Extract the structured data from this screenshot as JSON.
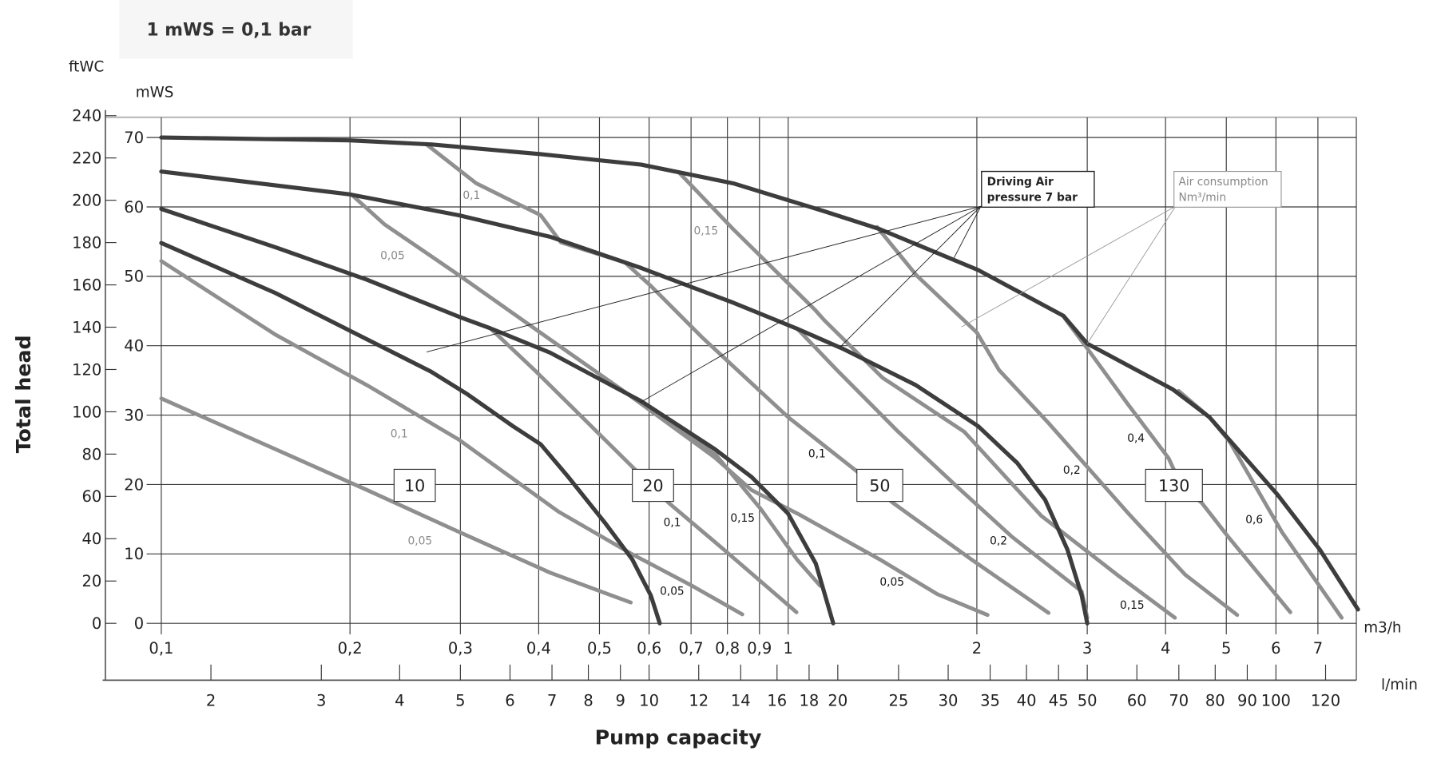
{
  "header": {
    "note": "1 mWS = 0,1 bar"
  },
  "chart_data": {
    "type": "line",
    "title": "",
    "xlabel": "Pump capacity",
    "ylabel": "Total head",
    "x_scale": "log",
    "x_unit": "m3/h",
    "x2_unit": "l/min",
    "y_unit": "mWS",
    "y2_unit": "ftWC",
    "xlim": [
      0.1,
      8.1
    ],
    "ylim": [
      0,
      72.9
    ],
    "grid": true,
    "x_ticks": [
      {
        "value": 0.1,
        "label": "0,1"
      },
      {
        "value": 0.2,
        "label": "0,2"
      },
      {
        "value": 0.3,
        "label": "0,3"
      },
      {
        "value": 0.4,
        "label": "0,4"
      },
      {
        "value": 0.5,
        "label": "0,5"
      },
      {
        "value": 0.6,
        "label": "0,6"
      },
      {
        "value": 0.7,
        "label": "0,7"
      },
      {
        "value": 0.8,
        "label": "0,8"
      },
      {
        "value": 0.9,
        "label": "0,9"
      },
      {
        "value": 1,
        "label": "1"
      },
      {
        "value": 2,
        "label": "2"
      },
      {
        "value": 3,
        "label": "3"
      },
      {
        "value": 4,
        "label": "4"
      },
      {
        "value": 5,
        "label": "5"
      },
      {
        "value": 6,
        "label": "6"
      },
      {
        "value": 7,
        "label": "7"
      }
    ],
    "x2_ticks": [
      {
        "value": 2,
        "label": "2"
      },
      {
        "value": 3,
        "label": "3"
      },
      {
        "value": 4,
        "label": "4"
      },
      {
        "value": 5,
        "label": "5"
      },
      {
        "value": 6,
        "label": "6"
      },
      {
        "value": 7,
        "label": "7"
      },
      {
        "value": 8,
        "label": "8"
      },
      {
        "value": 9,
        "label": "9"
      },
      {
        "value": 10,
        "label": "10"
      },
      {
        "value": 12,
        "label": "12"
      },
      {
        "value": 14,
        "label": "14"
      },
      {
        "value": 16,
        "label": "16"
      },
      {
        "value": 18,
        "label": "18"
      },
      {
        "value": 20,
        "label": "20"
      },
      {
        "value": 25,
        "label": "25"
      },
      {
        "value": 30,
        "label": "30"
      },
      {
        "value": 35,
        "label": "35"
      },
      {
        "value": 40,
        "label": "40"
      },
      {
        "value": 45,
        "label": "45"
      },
      {
        "value": 50,
        "label": "50"
      },
      {
        "value": 60,
        "label": "60"
      },
      {
        "value": 70,
        "label": "70"
      },
      {
        "value": 80,
        "label": "80"
      },
      {
        "value": 90,
        "label": "90"
      },
      {
        "value": 100,
        "label": "100"
      },
      {
        "value": 120,
        "label": "120"
      }
    ],
    "y_ticks": [
      {
        "value": 0,
        "label": "0"
      },
      {
        "value": 10,
        "label": "10"
      },
      {
        "value": 20,
        "label": "20"
      },
      {
        "value": 30,
        "label": "30"
      },
      {
        "value": 40,
        "label": "40"
      },
      {
        "value": 50,
        "label": "50"
      },
      {
        "value": 60,
        "label": "60"
      },
      {
        "value": 70,
        "label": "70"
      }
    ],
    "y2_ticks": [
      {
        "value": 0,
        "label": "0"
      },
      {
        "value": 20,
        "label": "20"
      },
      {
        "value": 40,
        "label": "40"
      },
      {
        "value": 60,
        "label": "60"
      },
      {
        "value": 80,
        "label": "80"
      },
      {
        "value": 100,
        "label": "100"
      },
      {
        "value": 120,
        "label": "120"
      },
      {
        "value": 140,
        "label": "140"
      },
      {
        "value": 160,
        "label": "160"
      },
      {
        "value": 180,
        "label": "180"
      },
      {
        "value": 200,
        "label": "200"
      },
      {
        "value": 220,
        "label": "220"
      },
      {
        "value": 240,
        "label": "240"
      }
    ],
    "pump_curves": [
      {
        "name": "130",
        "points": [
          [
            0.1,
            70.0
          ],
          [
            0.2,
            69.6
          ],
          [
            0.27,
            69.0
          ],
          [
            0.403,
            67.6
          ],
          [
            0.583,
            66.1
          ],
          [
            0.817,
            63.4
          ],
          [
            1.14,
            59.4
          ],
          [
            1.4,
            56.8
          ],
          [
            2.01,
            50.9
          ],
          [
            2.75,
            44.3
          ],
          [
            3.0,
            40.3
          ],
          [
            4.11,
            33.7
          ],
          [
            4.7,
            29.7
          ],
          [
            6.04,
            18.5
          ],
          [
            7.05,
            10.6
          ],
          [
            8.11,
            2.0
          ]
        ]
      },
      {
        "name": "50",
        "points": [
          [
            0.1,
            65.1
          ],
          [
            0.2,
            61.8
          ],
          [
            0.298,
            58.8
          ],
          [
            0.417,
            55.7
          ],
          [
            0.583,
            51.2
          ],
          [
            0.817,
            46.2
          ],
          [
            1.03,
            42.5
          ],
          [
            1.22,
            39.6
          ],
          [
            1.6,
            34.3
          ],
          [
            2.01,
            28.4
          ],
          [
            2.32,
            23.1
          ],
          [
            2.57,
            17.8
          ],
          [
            2.79,
            10.6
          ],
          [
            2.94,
            4.0
          ],
          [
            3.0,
            0
          ]
        ]
      },
      {
        "name": "20",
        "points": [
          [
            0.1,
            59.7
          ],
          [
            0.152,
            54.2
          ],
          [
            0.213,
            49.5
          ],
          [
            0.298,
            44.2
          ],
          [
            0.335,
            42.5
          ],
          [
            0.417,
            39.0
          ],
          [
            0.583,
            32.0
          ],
          [
            0.764,
            25.1
          ],
          [
            0.874,
            21.1
          ],
          [
            1.0,
            15.8
          ],
          [
            1.107,
            8.6
          ],
          [
            1.18,
            0
          ]
        ]
      },
      {
        "name": "10",
        "points": [
          [
            0.1,
            54.8
          ],
          [
            0.152,
            47.6
          ],
          [
            0.213,
            40.9
          ],
          [
            0.269,
            36.3
          ],
          [
            0.308,
            33.0
          ],
          [
            0.364,
            28.4
          ],
          [
            0.403,
            25.8
          ],
          [
            0.446,
            21.1
          ],
          [
            0.51,
            14.5
          ],
          [
            0.564,
            9.2
          ],
          [
            0.604,
            4.0
          ],
          [
            0.624,
            0
          ]
        ]
      }
    ],
    "air_consumption_lines": [
      {
        "label": "0,05",
        "points": [
          [
            0.1,
            32.4
          ],
          [
            0.152,
            25.1
          ],
          [
            0.213,
            19.2
          ],
          [
            0.298,
            13.2
          ],
          [
            0.417,
            7.3
          ],
          [
            0.561,
            3.0
          ]
        ]
      },
      {
        "label": "0,1",
        "points": [
          [
            0.1,
            52.2
          ],
          [
            0.152,
            41.6
          ],
          [
            0.213,
            34.3
          ],
          [
            0.298,
            26.5
          ],
          [
            0.43,
            16.1
          ],
          [
            0.563,
            10.0
          ],
          [
            0.7,
            5.5
          ],
          [
            0.845,
            1.3
          ]
        ]
      },
      {
        "label": "0,05",
        "points": [
          [
            0.201,
            61.8
          ],
          [
            0.227,
            57.5
          ],
          [
            0.298,
            50.2
          ],
          [
            0.417,
            40.9
          ],
          [
            0.546,
            33.5
          ],
          [
            0.764,
            23.9
          ],
          [
            0.874,
            19.2
          ],
          [
            1.04,
            15.7
          ],
          [
            1.4,
            9.2
          ],
          [
            1.73,
            4.2
          ],
          [
            2.08,
            1.2
          ]
        ]
      },
      {
        "label": "0,1",
        "points": [
          [
            0.265,
            69.0
          ],
          [
            0.318,
            63.4
          ],
          [
            0.403,
            58.8
          ],
          [
            0.434,
            54.9
          ],
          [
            0.549,
            52.0
          ],
          [
            0.604,
            48.6
          ],
          [
            0.731,
            41.1
          ],
          [
            1.0,
            29.7
          ],
          [
            1.279,
            22.1
          ],
          [
            1.468,
            17.4
          ],
          [
            1.96,
            9.2
          ],
          [
            2.602,
            1.5
          ]
        ]
      },
      {
        "label": "0,15",
        "points": [
          [
            0.669,
            65.0
          ],
          [
            0.817,
            56.8
          ],
          [
            1.103,
            45.2
          ],
          [
            1.144,
            43.6
          ],
          [
            1.414,
            35.4
          ],
          [
            1.909,
            27.6
          ],
          [
            2.533,
            15.5
          ],
          [
            3.36,
            6.9
          ],
          [
            4.14,
            0.8
          ]
        ]
      },
      {
        "label": "0,2",
        "points": [
          [
            1.033,
            42.5
          ],
          [
            1.196,
            36.5
          ],
          [
            1.498,
            27.6
          ],
          [
            1.87,
            19.5
          ],
          [
            2.274,
            12.5
          ],
          [
            2.94,
            4.6
          ],
          [
            3.0,
            0.8
          ]
        ]
      },
      {
        "label": "0,2",
        "points": [
          [
            1.386,
            57.1
          ],
          [
            1.6,
            50.2
          ],
          [
            2.0,
            41.9
          ],
          [
            2.17,
            36.5
          ],
          [
            2.6,
            28.9
          ],
          [
            3.5,
            15.7
          ],
          [
            4.3,
            7.0
          ],
          [
            5.205,
            1.2
          ]
        ]
      },
      {
        "label": "0,4",
        "points": [
          [
            2.75,
            44.2
          ],
          [
            3.0,
            39.6
          ],
          [
            3.475,
            31.7
          ],
          [
            4.044,
            23.8
          ],
          [
            4.24,
            19.8
          ],
          [
            4.565,
            17.4
          ],
          [
            5.033,
            12.5
          ],
          [
            6.326,
            1.6
          ]
        ]
      },
      {
        "label": "0,6",
        "points": [
          [
            4.196,
            33.5
          ],
          [
            4.7,
            29.7
          ],
          [
            5.06,
            26.2
          ],
          [
            6.138,
            13.1
          ],
          [
            7.64,
            0.8
          ]
        ]
      },
      {
        "label": "0,1",
        "points": [
          [
            0.335,
            42.5
          ],
          [
            0.396,
            36.3
          ],
          [
            0.565,
            22.5
          ],
          [
            0.644,
            17.4
          ],
          [
            0.79,
            10.6
          ],
          [
            1.031,
            1.6
          ]
        ]
      },
      {
        "label": "0,15",
        "points": [
          [
            0.583,
            32.0
          ],
          [
            0.768,
            24.2
          ],
          [
            0.904,
            16.5
          ],
          [
            1.033,
            9.2
          ],
          [
            1.125,
            5.4
          ]
        ]
      }
    ],
    "line_labels": [
      {
        "text": "0,1",
        "color": "#8a8a8a"
      },
      {
        "text": "0,05",
        "color": "#8a8a8a"
      },
      {
        "text": "0,15",
        "color": "#8a8a8a"
      },
      {
        "text": "0,1",
        "color": "#8a8a8a"
      },
      {
        "text": "0,05",
        "color": "#8a8a8a"
      },
      {
        "text": "0,1",
        "color": "#111111"
      },
      {
        "text": "0,05",
        "color": "#111111"
      },
      {
        "text": "0,15",
        "color": "#111111"
      },
      {
        "text": "0,1",
        "color": "#111111"
      },
      {
        "text": "0,05",
        "color": "#111111"
      },
      {
        "text": "0,2",
        "color": "#111111"
      },
      {
        "text": "0,2",
        "color": "#111111"
      },
      {
        "text": "0,15",
        "color": "#111111"
      },
      {
        "text": "0,4",
        "color": "#111111"
      },
      {
        "text": "0,6",
        "color": "#111111"
      }
    ],
    "pump_labels": [
      "10",
      "20",
      "50",
      "130"
    ],
    "annotations": {
      "driving_air": {
        "line1": "Driving Air",
        "line2": "pressure 7 bar",
        "anchor": [
          2.03,
          60.1
        ],
        "targets": [
          [
            0.265,
            39.1
          ],
          [
            0.58,
            31.8
          ],
          [
            1.21,
            39.8
          ],
          [
            1.84,
            52.7
          ]
        ]
      },
      "air_consumption": {
        "line1": "Air consumption",
        "line2": "Nm³/min",
        "anchor": [
          4.15,
          60.1
        ],
        "targets": [
          [
            1.89,
            42.7
          ],
          [
            3.0,
            40.3
          ]
        ]
      }
    },
    "colors": {
      "pump_curve": "#3d3d3d",
      "air_line": "#8f8f8f",
      "grid": "#3a3a3a",
      "top_border": "#bdbdbd"
    }
  }
}
